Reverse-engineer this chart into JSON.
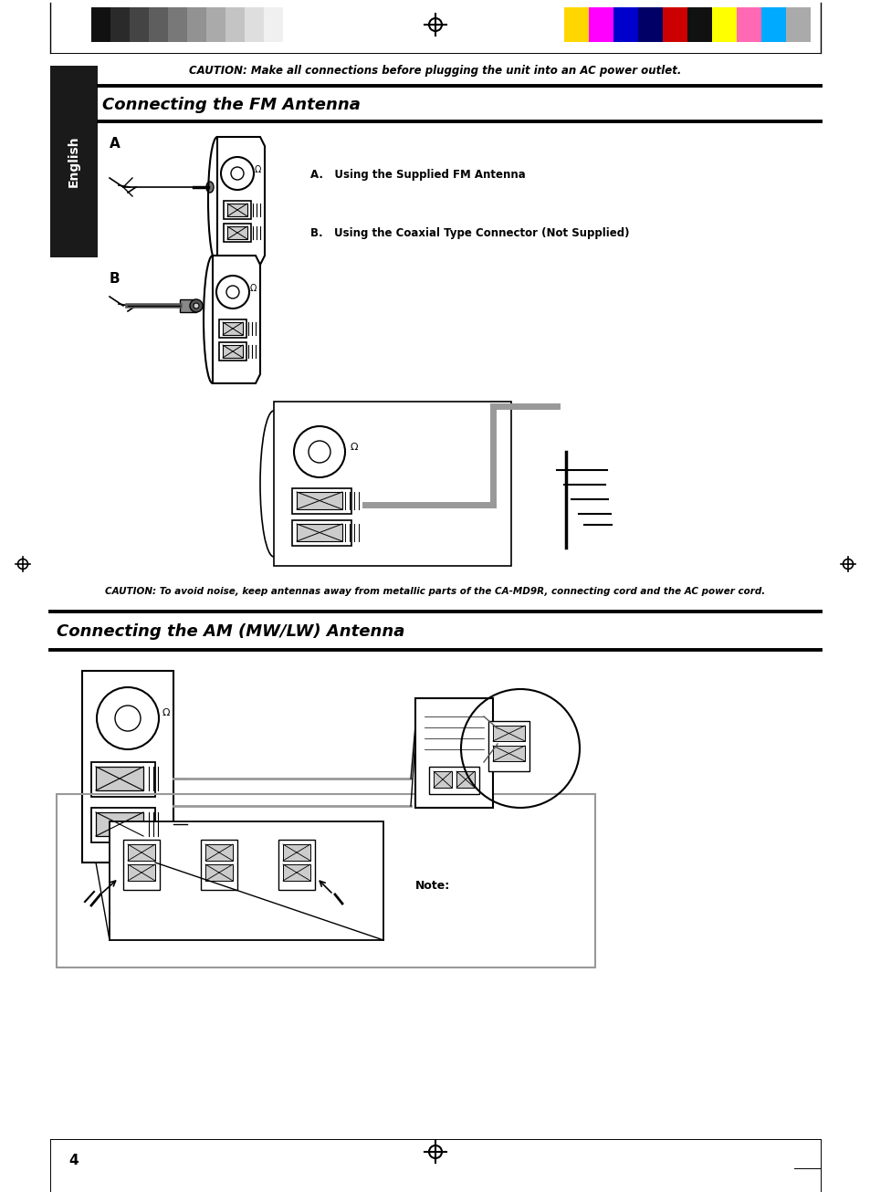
{
  "title_caution": "CAUTION: Make all connections before plugging the unit into an AC power outlet.",
  "section1_title": "Connecting the FM Antenna",
  "label_A": "A",
  "label_B": "B",
  "text_A": "A.   Using the Supplied FM Antenna",
  "text_B": "B.   Using the Coaxial Type Connector (Not Supplied)",
  "caution2": "CAUTION: To avoid noise, keep antennas away from metallic parts of the CA-MD9R, connecting cord and the AC power cord.",
  "section2_title": "Connecting the AM (MW/LW) Antenna",
  "note_label": "Note:",
  "page_number": "4",
  "sidebar_text": "English",
  "bg_color": "#ffffff",
  "black": "#000000",
  "gray_line": "#999999",
  "sidebar_bg": "#1a1a1a",
  "gray_colors": [
    "#111111",
    "#2a2a2a",
    "#444444",
    "#5e5e5e",
    "#787878",
    "#929292",
    "#aaaaaa",
    "#c4c4c4",
    "#dedede",
    "#f0f0f0"
  ],
  "color_strip": [
    "#FFD700",
    "#FF00FF",
    "#0000CC",
    "#000066",
    "#CC0000",
    "#111111",
    "#FFFF00",
    "#FF69B4",
    "#00AAFF",
    "#aaaaaa"
  ]
}
